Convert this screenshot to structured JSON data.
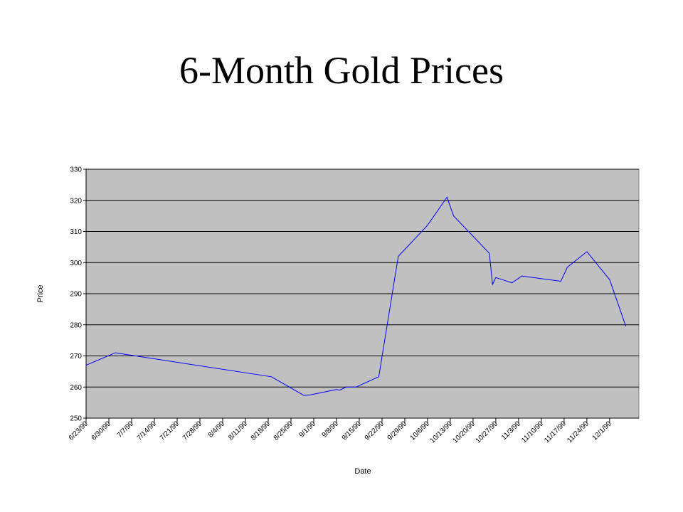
{
  "slide": {
    "title": "6-Month Gold Prices"
  },
  "chart_data": {
    "type": "line",
    "title": "",
    "xlabel": "Date",
    "ylabel": "Price",
    "ylim": [
      250,
      330
    ],
    "y_ticks": [
      250,
      260,
      270,
      280,
      290,
      300,
      310,
      320,
      330
    ],
    "x_tick_labels": [
      "6/23/99",
      "6/30/99",
      "7/7/99",
      "7/14/99",
      "7/21/99",
      "7/28/99",
      "8/4/99",
      "8/11/99",
      "8/18/99",
      "8/25/99",
      "9/1/99",
      "9/8/99",
      "9/15/99",
      "9/22/99",
      "9/29/99",
      "10/6/99",
      "10/13/99",
      "10/20/99",
      "10/27/99",
      "11/3/99",
      "11/10/99",
      "11/17/99",
      "11/24/99",
      "12/1/99"
    ],
    "x_range": [
      "1999-06-23",
      "1999-12-10"
    ],
    "grid": {
      "horizontal": true,
      "vertical": false
    },
    "legend": "none",
    "plot_background": "#c0c0c0",
    "series_color": "#0000ff",
    "series": [
      {
        "points": [
          {
            "x": "1999-06-23",
            "y": 267
          },
          {
            "x": "1999-07-02",
            "y": 271
          },
          {
            "x": "1999-08-19",
            "y": 263.3
          },
          {
            "x": "1999-08-29",
            "y": 257.3
          },
          {
            "x": "1999-08-31",
            "y": 257.5
          },
          {
            "x": "1999-09-08",
            "y": 259.2
          },
          {
            "x": "1999-09-09",
            "y": 259
          },
          {
            "x": "1999-09-11",
            "y": 260
          },
          {
            "x": "1999-09-14",
            "y": 260
          },
          {
            "x": "1999-09-21",
            "y": 263.3
          },
          {
            "x": "1999-09-27",
            "y": 302
          },
          {
            "x": "1999-10-06",
            "y": 312
          },
          {
            "x": "1999-10-12",
            "y": 321
          },
          {
            "x": "1999-10-14",
            "y": 315
          },
          {
            "x": "1999-10-25",
            "y": 303
          },
          {
            "x": "1999-10-26",
            "y": 293
          },
          {
            "x": "1999-10-27",
            "y": 295.2
          },
          {
            "x": "1999-11-01",
            "y": 293.5
          },
          {
            "x": "1999-11-04",
            "y": 295.7
          },
          {
            "x": "1999-11-16",
            "y": 294
          },
          {
            "x": "1999-11-18",
            "y": 298.5
          },
          {
            "x": "1999-11-24",
            "y": 303.5
          },
          {
            "x": "1999-12-01",
            "y": 294.5
          },
          {
            "x": "1999-12-06",
            "y": 279.5
          }
        ]
      }
    ]
  }
}
